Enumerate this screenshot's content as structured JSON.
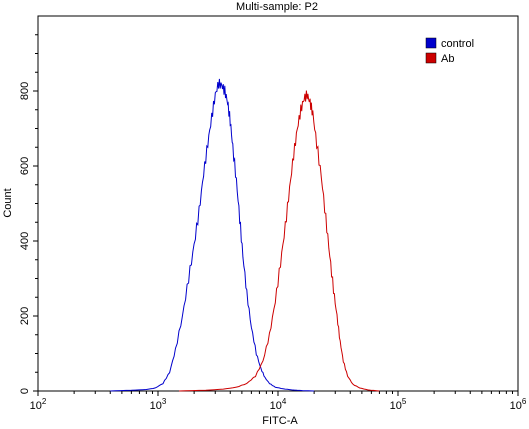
{
  "chart_data": {
    "type": "line",
    "title": "Multi-sample: P2",
    "xlabel": "FITC-A",
    "ylabel": "Count",
    "x_scale": "log",
    "xlim": [
      100,
      1000000
    ],
    "ylim": [
      0,
      1000
    ],
    "grid": false,
    "legend_position": "top-right",
    "x_ticks": [
      {
        "value": 100,
        "base": "10",
        "exp": "2"
      },
      {
        "value": 1000,
        "base": "10",
        "exp": "3"
      },
      {
        "value": 10000,
        "base": "10",
        "exp": "4"
      },
      {
        "value": 100000,
        "base": "10",
        "exp": "5"
      },
      {
        "value": 1000000,
        "base": "10",
        "exp": "6"
      }
    ],
    "y_ticks": [
      0,
      200,
      400,
      600,
      800
    ],
    "series": [
      {
        "name": "control",
        "color": "#0000cc",
        "x": [
          400,
          600,
          800,
          950,
          1100,
          1250,
          1400,
          1600,
          1800,
          2000,
          2200,
          2400,
          2600,
          2800,
          3000,
          3200,
          3400,
          3600,
          3800,
          4000,
          4200,
          4500,
          4800,
          5100,
          5500,
          6000,
          6600,
          7200,
          7800,
          8500,
          9500,
          11000,
          13000,
          16000,
          20000
        ],
        "y": [
          0,
          2,
          4,
          8,
          20,
          50,
          110,
          200,
          300,
          390,
          480,
          580,
          660,
          730,
          790,
          820,
          815,
          800,
          770,
          720,
          650,
          560,
          460,
          360,
          260,
          170,
          100,
          60,
          35,
          20,
          10,
          6,
          3,
          1,
          0
        ]
      },
      {
        "name": "Ab",
        "color": "#cc0000",
        "x": [
          1500,
          2500,
          3500,
          4500,
          5500,
          6500,
          7500,
          8500,
          9500,
          10500,
          11500,
          12500,
          13500,
          14500,
          15500,
          16500,
          17500,
          18500,
          19500,
          21000,
          23000,
          25000,
          27000,
          29000,
          31000,
          33000,
          35000,
          38000,
          42000,
          48000,
          56000,
          70000
        ],
        "y": [
          0,
          2,
          5,
          10,
          20,
          40,
          80,
          150,
          240,
          340,
          440,
          540,
          630,
          700,
          750,
          780,
          790,
          770,
          740,
          660,
          570,
          460,
          360,
          270,
          200,
          130,
          80,
          40,
          18,
          8,
          3,
          0
        ]
      }
    ]
  }
}
